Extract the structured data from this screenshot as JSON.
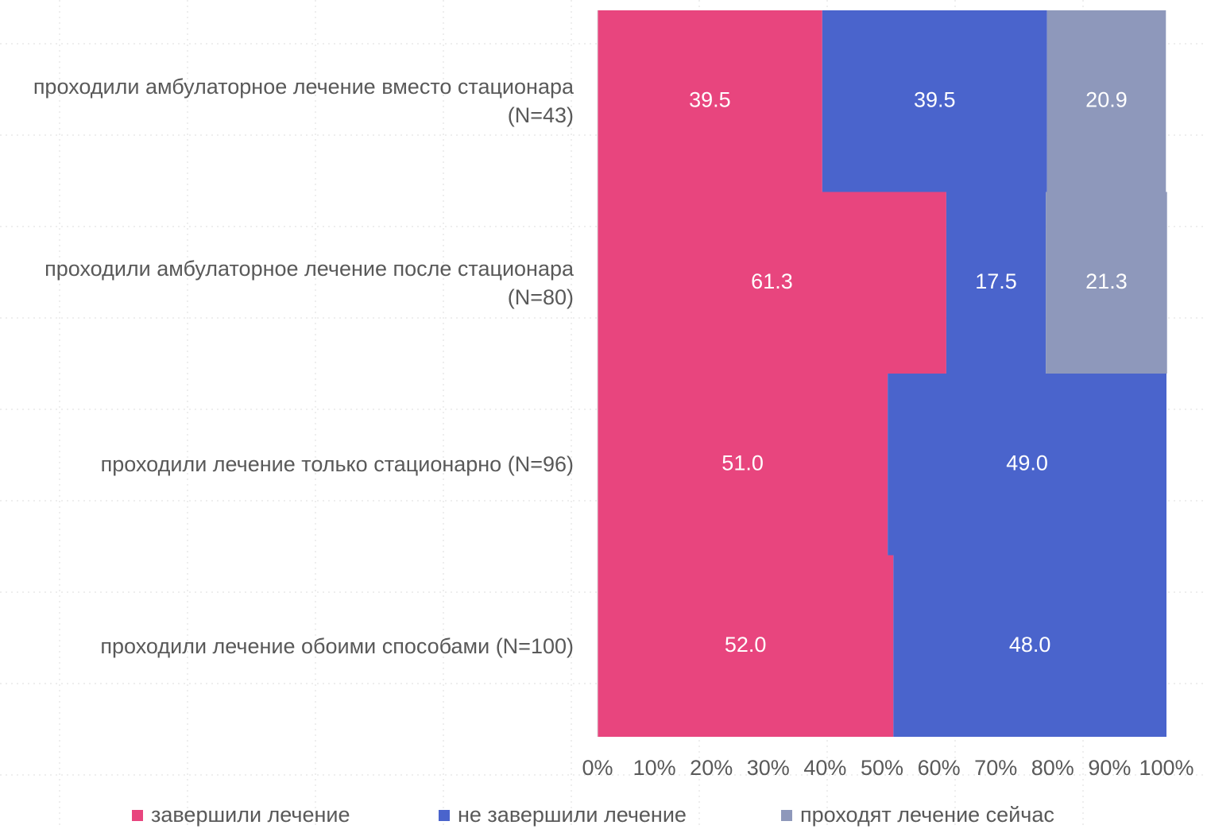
{
  "chart_data": {
    "type": "stacked-barh",
    "categories": [
      "проходили амбулаторное лечение вместо стационара (N=43)",
      "проходили амбулаторное лечение после стационара (N=80)",
      "проходили лечение только стационарно (N=96)",
      "проходили лечение обоими способами (N=100)"
    ],
    "series": [
      {
        "name": "завершили лечение",
        "color": "#e8457e",
        "values": [
          39.5,
          61.3,
          51.0,
          52.0
        ],
        "value_labels": [
          "39.5",
          "61.3",
          "51.0",
          "52.0"
        ]
      },
      {
        "name": "не завершили лечение",
        "color": "#4a64cc",
        "values": [
          39.5,
          17.5,
          49.0,
          48.0
        ],
        "value_labels": [
          "39.5",
          "17.5",
          "49.0",
          "48.0"
        ]
      },
      {
        "name": "проходят лечение сейчас",
        "color": "#8e98bb",
        "values": [
          20.9,
          21.3,
          null,
          null
        ],
        "value_labels": [
          "20.9",
          "21.3",
          null,
          null
        ]
      }
    ],
    "xlim": [
      0,
      100
    ],
    "xticks": [
      {
        "value": 0,
        "label": "0%"
      },
      {
        "value": 10,
        "label": "10%"
      },
      {
        "value": 20,
        "label": "20%"
      },
      {
        "value": 30,
        "label": "30%"
      },
      {
        "value": 40,
        "label": "40%"
      },
      {
        "value": 50,
        "label": "50%"
      },
      {
        "value": 60,
        "label": "60%"
      },
      {
        "value": 70,
        "label": "70%"
      },
      {
        "value": 80,
        "label": "80%"
      },
      {
        "value": 90,
        "label": "90%"
      },
      {
        "value": 100,
        "label": "100%"
      }
    ],
    "legend": "bottom"
  }
}
